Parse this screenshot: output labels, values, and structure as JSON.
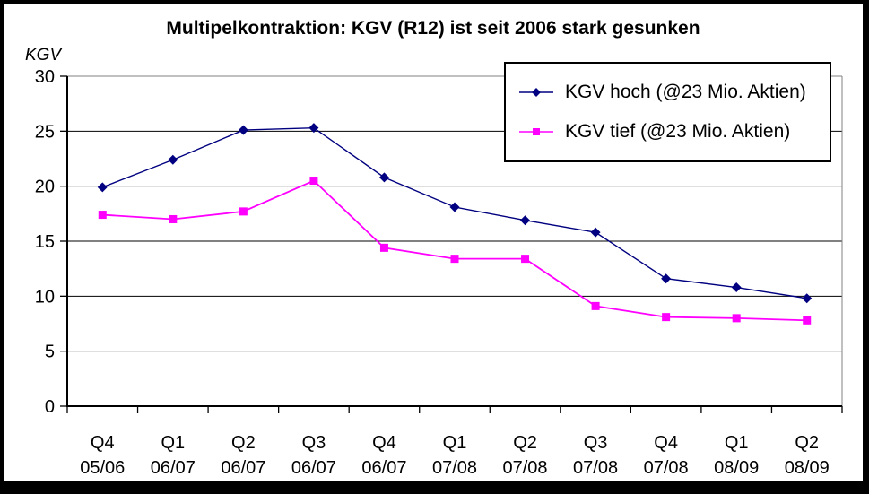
{
  "title": "Multipelkontraktion: KGV (R12) ist seit 2006 stark gesunken",
  "colors": {
    "background": "#ffffff",
    "outer_border": "#000000",
    "grid_color": "#000000",
    "plot_border_color": "#808080",
    "axis_color": "#000000",
    "text_color": "#000000",
    "series_hoch": "#000080",
    "series_tief": "#FF00FF"
  },
  "chart_data": {
    "type": "line",
    "title": "Multipelkontraktion: KGV (R12) ist seit 2006 stark gesunken",
    "xlabel": "",
    "ylabel": "KGV",
    "ylim": [
      0,
      30
    ],
    "yticks": [
      0,
      5,
      10,
      15,
      20,
      25,
      30
    ],
    "grid": true,
    "legend_position": "top-right",
    "categories": [
      "Q4 05/06",
      "Q1 06/07",
      "Q2 06/07",
      "Q3 06/07",
      "Q4 06/07",
      "Q1 07/08",
      "Q2 07/08",
      "Q3 07/08",
      "Q4 07/08",
      "Q1 08/09",
      "Q2 08/09"
    ],
    "series": [
      {
        "name": "KGV hoch (@23 Mio. Aktien)",
        "color": "#000080",
        "marker": "diamond",
        "values": [
          19.9,
          22.4,
          25.1,
          25.3,
          20.8,
          18.1,
          16.9,
          15.8,
          11.6,
          10.8,
          9.8
        ]
      },
      {
        "name": "KGV tief (@23 Mio. Aktien)",
        "color": "#FF00FF",
        "marker": "square",
        "values": [
          17.4,
          17.0,
          17.7,
          20.5,
          14.4,
          13.4,
          13.4,
          9.1,
          8.1,
          8.0,
          7.8
        ]
      }
    ]
  }
}
